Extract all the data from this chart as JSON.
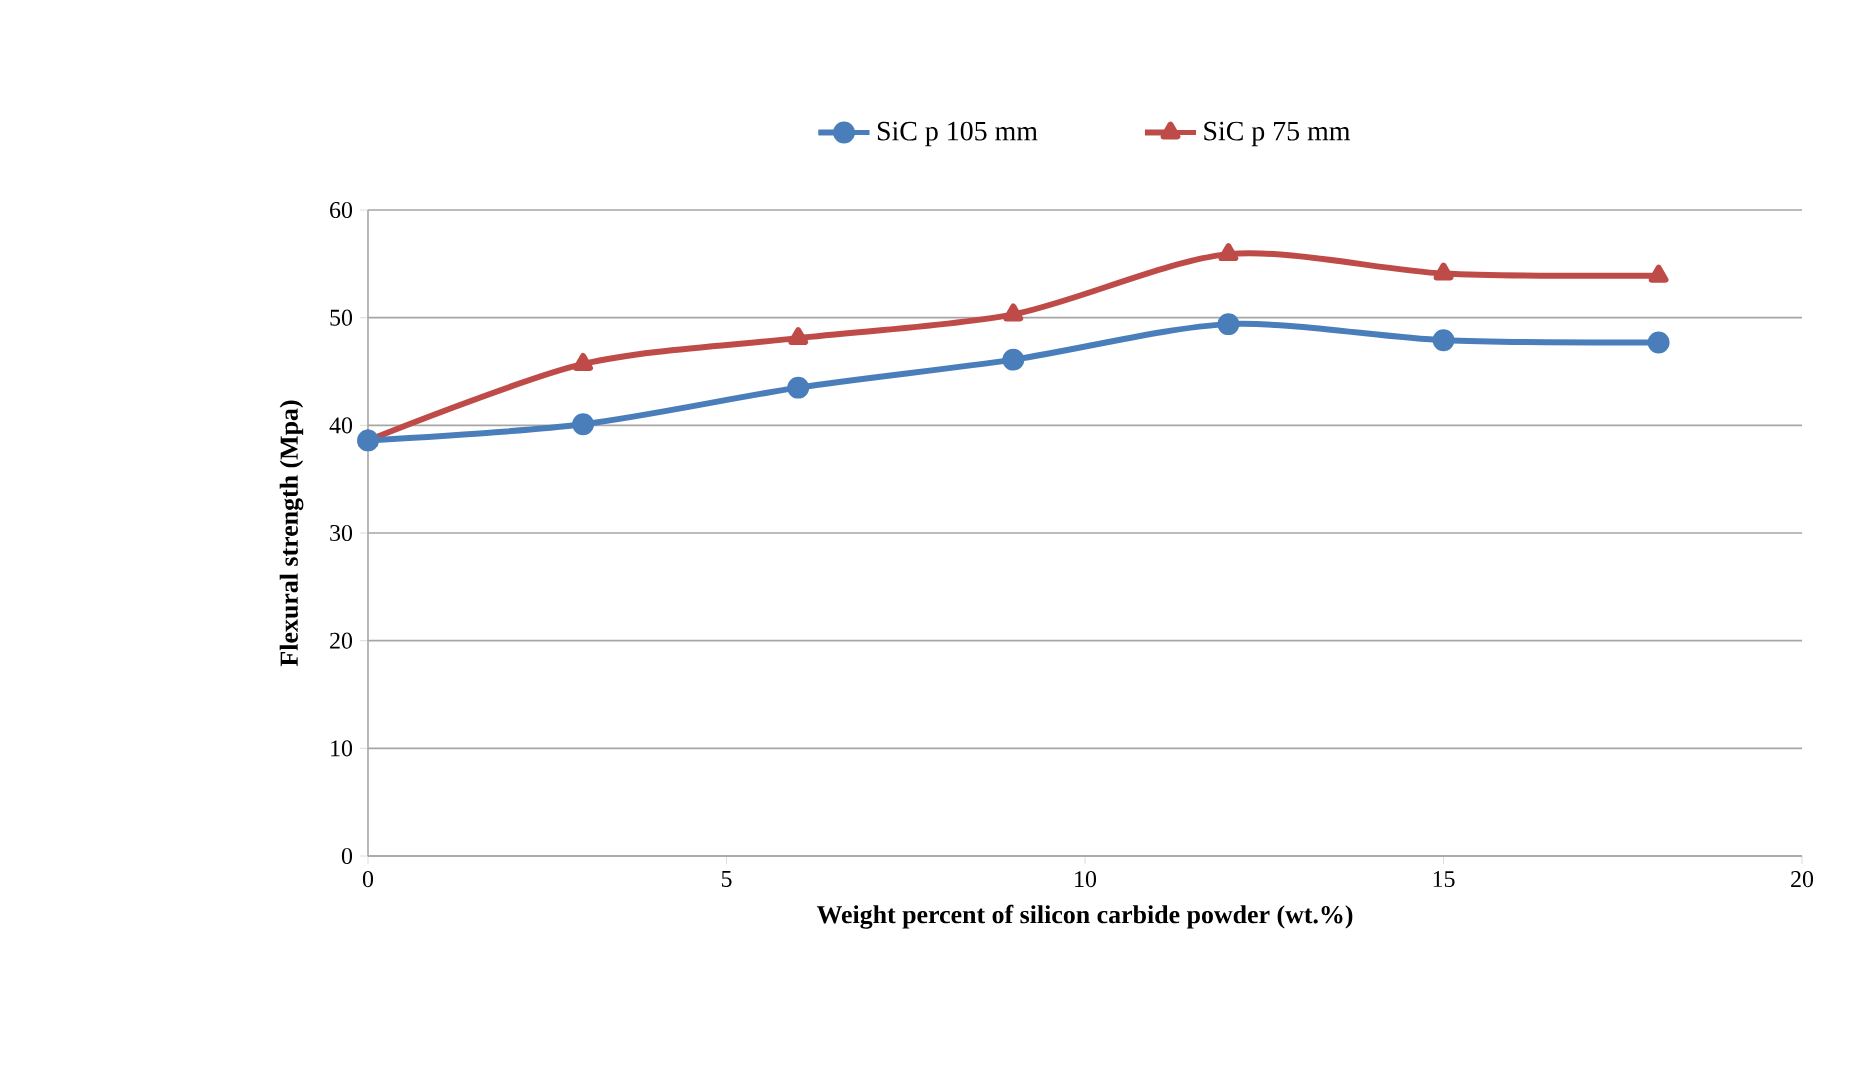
{
  "chart_data": {
    "type": "line",
    "xlabel": "Weight percent of silicon carbide powder  (wt.%)",
    "ylabel": "Flexural strength (Mpa)",
    "x": [
      0,
      3,
      6,
      9,
      12,
      15,
      18
    ],
    "series": [
      {
        "name": "SiC p 105 mm",
        "color": "#4a7ebb",
        "marker": "circle",
        "values": [
          38.6,
          40.1,
          43.5,
          46.1,
          49.4,
          47.9,
          47.7
        ]
      },
      {
        "name": "SiC p 75 mm",
        "color": "#be4b48",
        "marker": "triangle",
        "values": [
          38.6,
          45.7,
          48.1,
          50.3,
          55.9,
          54.1,
          53.9
        ]
      }
    ],
    "xlim": [
      0,
      20
    ],
    "xticks": [
      0,
      5,
      10,
      15,
      20
    ],
    "ylim": [
      0,
      60
    ],
    "yticks": [
      0,
      10,
      20,
      30,
      40,
      50,
      60
    ],
    "grid": "y",
    "legend": "top"
  }
}
